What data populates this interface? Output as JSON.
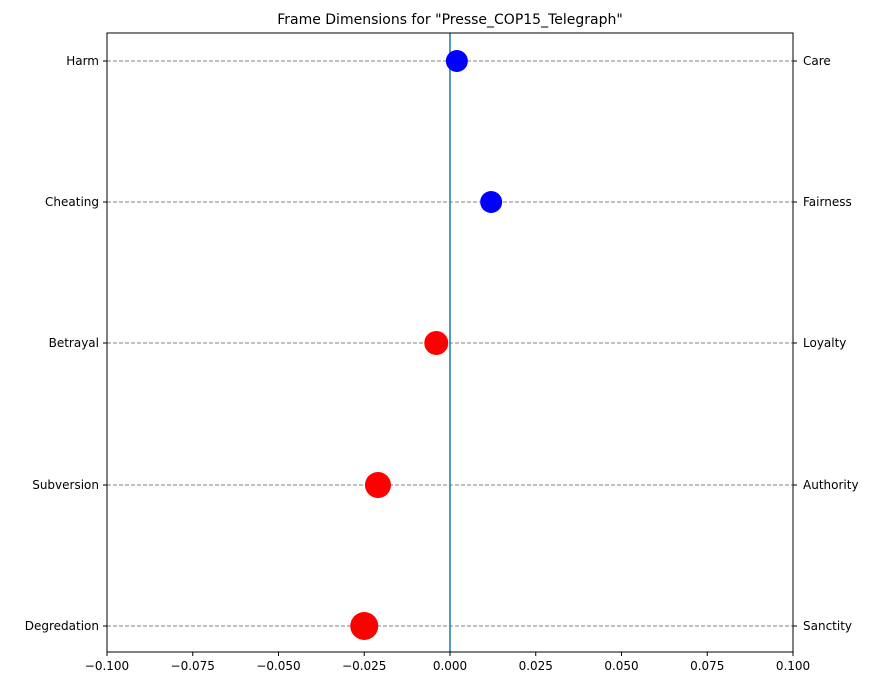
{
  "chart_data": {
    "type": "scatter",
    "title": "Frame Dimensions for \"Presse_COP15_Telegraph\"",
    "xlim": [
      -0.1,
      0.1
    ],
    "xticks": [
      "−0.100",
      "−0.075",
      "−0.050",
      "−0.025",
      "0.000",
      "0.025",
      "0.050",
      "0.075",
      "0.100"
    ],
    "xtick_values": [
      -0.1,
      -0.075,
      -0.05,
      -0.025,
      0.0,
      0.025,
      0.05,
      0.075,
      0.1
    ],
    "left_labels": [
      "Harm",
      "Cheating",
      "Betrayal",
      "Subversion",
      "Degredation"
    ],
    "right_labels": [
      "Care",
      "Fairness",
      "Loyalty",
      "Authority",
      "Sanctity"
    ],
    "points": [
      {
        "x": 0.002,
        "size": 11,
        "color": "#0000ff"
      },
      {
        "x": 0.012,
        "size": 11,
        "color": "#0000ff"
      },
      {
        "x": -0.004,
        "size": 12,
        "color": "#ff0000"
      },
      {
        "x": -0.021,
        "size": 13,
        "color": "#ff0000"
      },
      {
        "x": -0.025,
        "size": 14,
        "color": "#ff0000"
      }
    ],
    "zero_line_color": "#1f77b4",
    "grid": "horizontal dashed"
  }
}
